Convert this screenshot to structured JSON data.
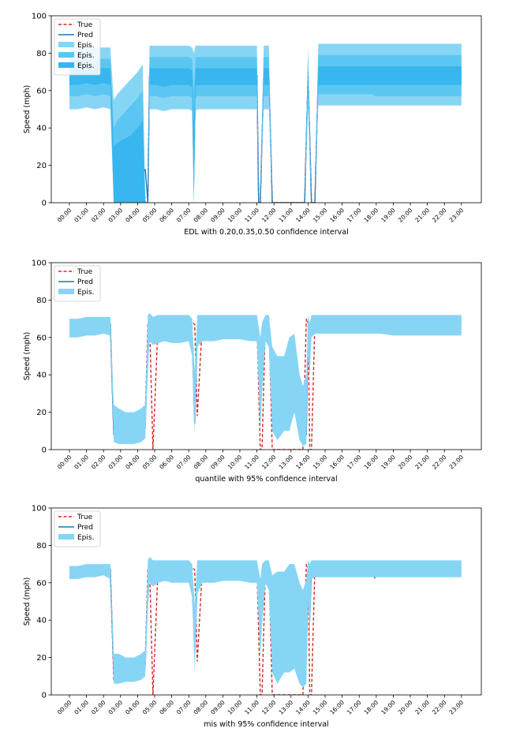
{
  "colors": {
    "true_line": "#d62728",
    "pred_line": "#1f77b4",
    "band_light": "#87d5f5",
    "band_mid": "#5cc6f2",
    "band_dark": "#38b6ee"
  },
  "chart_data": [
    {
      "type": "line",
      "ylabel": "Speed (mph)",
      "xlabel": "EDL with 0.20,0.35,0.50 confidence interval",
      "ylim": [
        0,
        100
      ],
      "yticks": [
        "0",
        "20",
        "40",
        "60",
        "80",
        "100"
      ],
      "xticks": [
        "00:00",
        "01:00",
        "02:00",
        "03:00",
        "04:00",
        "05:00",
        "06:00",
        "07:00",
        "08:00",
        "09:00",
        "10:00",
        "11:00",
        "12:00",
        "13:00",
        "14:00",
        "15:00",
        "16:00",
        "17:00",
        "18:00",
        "19:00",
        "20:00",
        "21:00",
        "22:00",
        "23:00"
      ],
      "legend": [
        "True",
        "Pred",
        "Epis.",
        "Epis.",
        "Epis."
      ],
      "legend_position": "top-left",
      "x": [
        0,
        0.5,
        1,
        1.5,
        2,
        2.4,
        2.6,
        2.8,
        3.2,
        3.6,
        4,
        4.3,
        4.45,
        4.6,
        4.7,
        4.9,
        5.1,
        5.5,
        6,
        6.5,
        7,
        7.2,
        7.3,
        7.4,
        7.5,
        7.8,
        8.5,
        9,
        10,
        10.5,
        11,
        11.1,
        11.2,
        11.4,
        11.5,
        11.7,
        11.9,
        12,
        12.1,
        13,
        13.6,
        13.8,
        14,
        14.2,
        14.4,
        14.6,
        15,
        16,
        17,
        17.8,
        17.9,
        18,
        18.3,
        18.5,
        19,
        20,
        21,
        22,
        23
      ],
      "series": [
        {
          "name": "True",
          "values": [
            66,
            64,
            67,
            66,
            69,
            68,
            10,
            9,
            11,
            13,
            15,
            18,
            0,
            0,
            68,
            69,
            68,
            67,
            68,
            66,
            68,
            67,
            18,
            66,
            68,
            67,
            68,
            69,
            67,
            68,
            69,
            0,
            0,
            69,
            68,
            70,
            0,
            0,
            0,
            0,
            0,
            0,
            70,
            0,
            0,
            68,
            69,
            70,
            69,
            68,
            62,
            67,
            69,
            68,
            69,
            69,
            69,
            69,
            69
          ]
        },
        {
          "name": "Pred",
          "values": [
            67,
            67,
            68,
            68,
            68,
            67,
            10,
            10,
            11,
            12,
            13,
            15,
            18,
            0,
            68,
            68,
            68,
            67,
            67,
            67,
            67,
            66,
            18,
            66,
            67,
            67,
            67,
            68,
            68,
            68,
            68,
            0,
            0,
            67,
            67,
            68,
            0,
            0,
            0,
            0,
            0,
            0,
            68,
            0,
            0,
            68,
            68,
            68,
            68,
            68,
            68,
            68,
            68,
            68,
            68,
            68,
            68,
            68,
            68
          ]
        }
      ],
      "bands": {
        "inner_lo": [
          63,
          63,
          64,
          63,
          64,
          63,
          0,
          0,
          0,
          0,
          0,
          0,
          0,
          0,
          63,
          63,
          63,
          62,
          63,
          63,
          63,
          62,
          0,
          62,
          63,
          63,
          63,
          63,
          63,
          63,
          63,
          0,
          0,
          63,
          63,
          63,
          0,
          0,
          0,
          0,
          0,
          0,
          63,
          0,
          0,
          63,
          63,
          63,
          63,
          63,
          63,
          63,
          63,
          63,
          63,
          63,
          63,
          63,
          63
        ],
        "inner_hi": [
          72,
          72,
          72,
          72,
          72,
          72,
          30,
          32,
          34,
          36,
          40,
          44,
          0,
          0,
          72,
          72,
          72,
          72,
          72,
          72,
          72,
          71,
          40,
          72,
          72,
          72,
          72,
          72,
          72,
          72,
          72,
          0,
          0,
          72,
          72,
          72,
          0,
          0,
          0,
          0,
          0,
          0,
          72,
          0,
          0,
          73,
          73,
          73,
          73,
          73,
          73,
          73,
          73,
          73,
          73,
          73,
          73,
          73,
          73
        ],
        "mid_lo": [
          57,
          57,
          58,
          57,
          58,
          57,
          0,
          0,
          0,
          0,
          0,
          0,
          0,
          0,
          57,
          57,
          57,
          56,
          57,
          57,
          57,
          56,
          0,
          56,
          57,
          57,
          57,
          57,
          57,
          57,
          57,
          0,
          0,
          57,
          57,
          57,
          0,
          0,
          0,
          0,
          0,
          0,
          57,
          0,
          0,
          58,
          58,
          58,
          58,
          58,
          57,
          57,
          57,
          57,
          57,
          57,
          57,
          57,
          57
        ],
        "mid_hi": [
          77,
          77,
          77,
          77,
          77,
          77,
          40,
          44,
          48,
          52,
          56,
          60,
          0,
          0,
          78,
          78,
          78,
          78,
          78,
          78,
          78,
          77,
          60,
          78,
          78,
          78,
          78,
          78,
          78,
          78,
          78,
          0,
          0,
          78,
          78,
          78,
          0,
          0,
          0,
          0,
          0,
          0,
          78,
          0,
          0,
          79,
          79,
          79,
          79,
          79,
          79,
          79,
          79,
          79,
          79,
          79,
          79,
          79,
          79
        ],
        "outer_lo": [
          50,
          50,
          51,
          50,
          51,
          50,
          0,
          0,
          0,
          0,
          0,
          0,
          0,
          0,
          50,
          50,
          50,
          49,
          50,
          50,
          50,
          49,
          0,
          49,
          50,
          50,
          50,
          50,
          50,
          50,
          50,
          0,
          0,
          50,
          50,
          50,
          0,
          0,
          0,
          0,
          0,
          0,
          50,
          0,
          0,
          52,
          52,
          52,
          52,
          52,
          52,
          52,
          52,
          52,
          52,
          52,
          52,
          52,
          52
        ],
        "outer_hi": [
          83,
          83,
          83,
          83,
          83,
          83,
          55,
          58,
          62,
          66,
          70,
          74,
          0,
          0,
          84,
          84,
          84,
          84,
          84,
          84,
          84,
          83,
          80,
          84,
          84,
          84,
          84,
          84,
          84,
          84,
          84,
          0,
          0,
          84,
          84,
          84,
          0,
          0,
          0,
          0,
          0,
          0,
          84,
          0,
          0,
          85,
          85,
          85,
          85,
          85,
          85,
          85,
          85,
          85,
          85,
          85,
          85,
          85,
          85
        ]
      }
    },
    {
      "type": "line",
      "ylabel": "Speed (mph)",
      "xlabel": "quantile with 95% confidence interval",
      "ylim": [
        0,
        100
      ],
      "yticks": [
        "0",
        "20",
        "40",
        "60",
        "80",
        "100"
      ],
      "xticks": [
        "00:00",
        "01:00",
        "02:00",
        "03:00",
        "04:00",
        "05:00",
        "06:00",
        "07:00",
        "08:00",
        "09:00",
        "10:00",
        "11:00",
        "12:00",
        "13:00",
        "14:00",
        "15:00",
        "16:00",
        "17:00",
        "18:00",
        "19:00",
        "20:00",
        "21:00",
        "22:00",
        "23:00"
      ],
      "legend": [
        "True",
        "Pred",
        "Epis."
      ],
      "legend_position": "top-left",
      "x": [
        0,
        0.5,
        1,
        1.5,
        2,
        2.4,
        2.6,
        2.9,
        3.3,
        3.8,
        4.2,
        4.45,
        4.6,
        4.7,
        4.9,
        5.2,
        5.6,
        6,
        6.5,
        7,
        7.2,
        7.35,
        7.5,
        7.8,
        8.5,
        9,
        10,
        10.6,
        11,
        11.2,
        11.3,
        11.5,
        11.7,
        11.9,
        12.2,
        12.6,
        12.9,
        13.2,
        13.5,
        13.7,
        13.9,
        14,
        14.1,
        14.2,
        14.4,
        15,
        16,
        17,
        17.8,
        17.9,
        18,
        18.3,
        19,
        20,
        21,
        22,
        23
      ],
      "series": [
        {
          "name": "True",
          "values": [
            65,
            64,
            67,
            66,
            69,
            68,
            8,
            10,
            8,
            12,
            15,
            18,
            68,
            69,
            0,
            68,
            67,
            66,
            68,
            66,
            68,
            67,
            18,
            68,
            67,
            68,
            69,
            67,
            68,
            0,
            0,
            69,
            70,
            0,
            0,
            0,
            0,
            0,
            0,
            0,
            70,
            68,
            0,
            0,
            68,
            69,
            70,
            69,
            68,
            62,
            67,
            69,
            69,
            69,
            69,
            69,
            69
          ]
        },
        {
          "name": "Pred",
          "values": [
            65,
            66,
            67,
            67,
            68,
            67,
            8,
            6,
            8,
            8,
            10,
            12,
            60,
            66,
            63,
            65,
            66,
            66,
            66,
            65,
            60,
            14,
            62,
            66,
            66,
            67,
            67,
            67,
            67,
            30,
            58,
            66,
            65,
            30,
            22,
            30,
            40,
            46,
            15,
            6,
            8,
            60,
            56,
            65,
            67,
            68,
            68,
            68,
            68,
            68,
            68,
            68,
            69,
            69,
            69,
            69,
            69
          ]
        }
      ],
      "bands": {
        "lo": [
          60,
          60,
          61,
          61,
          62,
          61,
          4,
          3,
          3,
          3,
          4,
          6,
          40,
          58,
          56,
          57,
          58,
          57,
          57,
          58,
          50,
          8,
          55,
          58,
          58,
          59,
          59,
          58,
          58,
          10,
          30,
          58,
          55,
          10,
          5,
          10,
          10,
          20,
          5,
          2,
          3,
          50,
          40,
          60,
          62,
          62,
          62,
          62,
          62,
          62,
          62,
          62,
          61,
          61,
          61,
          61,
          61
        ],
        "hi": [
          70,
          70,
          71,
          71,
          71,
          71,
          24,
          22,
          20,
          20,
          22,
          24,
          72,
          73,
          71,
          72,
          72,
          72,
          72,
          72,
          70,
          42,
          72,
          72,
          72,
          72,
          72,
          72,
          72,
          60,
          68,
          72,
          72,
          55,
          50,
          50,
          60,
          62,
          40,
          34,
          40,
          72,
          68,
          72,
          72,
          72,
          72,
          72,
          72,
          72,
          72,
          72,
          72,
          72,
          72,
          72,
          72
        ]
      }
    },
    {
      "type": "line",
      "ylabel": "Speed (mph)",
      "xlabel": "mis with 95% confidence interval",
      "ylim": [
        0,
        100
      ],
      "yticks": [
        "0",
        "20",
        "40",
        "60",
        "80",
        "100"
      ],
      "xticks": [
        "00:00",
        "01:00",
        "02:00",
        "03:00",
        "04:00",
        "05:00",
        "06:00",
        "07:00",
        "08:00",
        "09:00",
        "10:00",
        "11:00",
        "12:00",
        "13:00",
        "14:00",
        "15:00",
        "16:00",
        "17:00",
        "18:00",
        "19:00",
        "20:00",
        "21:00",
        "22:00",
        "23:00"
      ],
      "legend": [
        "True",
        "Pred",
        "Epis."
      ],
      "legend_position": "top-left",
      "x": [
        0,
        0.5,
        1,
        1.5,
        2,
        2.4,
        2.6,
        2.9,
        3.3,
        3.8,
        4.2,
        4.45,
        4.6,
        4.7,
        4.9,
        5.2,
        5.6,
        6,
        6.5,
        7,
        7.2,
        7.35,
        7.5,
        7.8,
        8.5,
        9,
        10,
        10.6,
        11,
        11.2,
        11.3,
        11.5,
        11.7,
        11.9,
        12.2,
        12.6,
        12.9,
        13.2,
        13.5,
        13.7,
        13.9,
        14,
        14.1,
        14.2,
        14.4,
        15,
        16,
        17,
        17.8,
        17.9,
        18,
        18.3,
        19,
        20,
        21,
        22,
        23
      ],
      "series": [
        {
          "name": "True",
          "values": [
            65,
            64,
            67,
            66,
            69,
            68,
            8,
            10,
            8,
            12,
            15,
            18,
            68,
            69,
            0,
            68,
            67,
            66,
            68,
            66,
            68,
            67,
            18,
            68,
            67,
            68,
            69,
            67,
            68,
            0,
            0,
            69,
            70,
            0,
            0,
            0,
            0,
            0,
            0,
            0,
            70,
            68,
            0,
            0,
            68,
            69,
            70,
            69,
            68,
            62,
            67,
            69,
            68,
            68,
            68,
            68,
            68
          ]
        },
        {
          "name": "Pred",
          "values": [
            66,
            66,
            67,
            67,
            68,
            66,
            12,
            11,
            11,
            12,
            14,
            16,
            60,
            67,
            64,
            66,
            67,
            67,
            67,
            66,
            60,
            22,
            60,
            66,
            66,
            67,
            67,
            67,
            67,
            40,
            60,
            67,
            66,
            40,
            35,
            38,
            42,
            38,
            20,
            14,
            20,
            62,
            40,
            66,
            67,
            68,
            68,
            68,
            68,
            68,
            68,
            68,
            68,
            68,
            68,
            68,
            68
          ]
        }
      ],
      "bands": {
        "lo": [
          62,
          62,
          63,
          63,
          64,
          62,
          6,
          6,
          7,
          7,
          8,
          10,
          44,
          60,
          58,
          60,
          61,
          60,
          60,
          60,
          52,
          12,
          54,
          60,
          60,
          61,
          61,
          60,
          60,
          20,
          38,
          60,
          56,
          12,
          6,
          12,
          12,
          14,
          6,
          4,
          6,
          50,
          30,
          62,
          63,
          63,
          63,
          63,
          63,
          63,
          63,
          63,
          63,
          63,
          63,
          63,
          63
        ],
        "hi": [
          69,
          69,
          70,
          70,
          70,
          70,
          22,
          22,
          20,
          20,
          22,
          24,
          72,
          74,
          72,
          72,
          72,
          72,
          72,
          72,
          70,
          48,
          72,
          72,
          72,
          72,
          72,
          72,
          72,
          62,
          70,
          72,
          72,
          64,
          66,
          66,
          70,
          70,
          60,
          56,
          62,
          72,
          70,
          72,
          72,
          72,
          72,
          72,
          72,
          72,
          72,
          72,
          72,
          72,
          72,
          72,
          72
        ]
      }
    }
  ]
}
